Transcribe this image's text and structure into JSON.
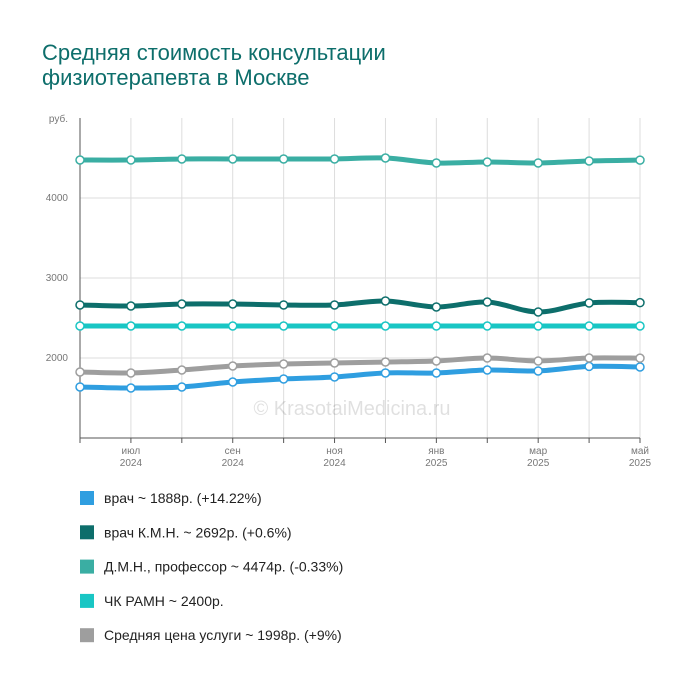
{
  "chart_data": {
    "type": "line",
    "title": "Средняя стоимость консультации физиотерапевта в Москве",
    "y_label": "руб.",
    "watermark": "© KrasotaiMedicina.ru",
    "categories": [
      null,
      "июл",
      null,
      "сен",
      null,
      "ноя",
      null,
      "янв",
      null,
      "мар",
      null,
      "май"
    ],
    "category_years": [
      null,
      "2024",
      null,
      "2024",
      null,
      "2024",
      null,
      "2025",
      null,
      "2025",
      null,
      "2025"
    ],
    "ylim": [
      1000,
      5000
    ],
    "yticks": [
      2000,
      3000,
      4000
    ],
    "grid": true,
    "series": [
      {
        "name": "врач ~ 1888р. (+14.22%)",
        "color": "#2f9ee0",
        "values": [
          1638,
          1625,
          1638,
          1700,
          1738,
          1763,
          1813,
          1813,
          1850,
          1838,
          1895,
          1888
        ]
      },
      {
        "name": "врач К.М.Н. ~ 2692р. (+0.6%)",
        "color": "#0d6e6b",
        "values": [
          2663,
          2650,
          2675,
          2675,
          2663,
          2663,
          2713,
          2638,
          2700,
          2575,
          2688,
          2692
        ]
      },
      {
        "name": "Д.М.Н., профессор ~ 4474р. (-0.33%)",
        "color": "#3aaea3",
        "values": [
          4475,
          4475,
          4488,
          4488,
          4488,
          4488,
          4500,
          4438,
          4450,
          4438,
          4463,
          4474
        ]
      },
      {
        "name": "ЧК РАМН ~ 2400р.",
        "color": "#19c6c4",
        "values": [
          2400,
          2400,
          2400,
          2400,
          2400,
          2400,
          2400,
          2400,
          2400,
          2400,
          2400,
          2400
        ]
      },
      {
        "name": "Средняя цена услуги ~ 1998р. (+9%)",
        "color": "#9e9e9e",
        "values": [
          1825,
          1813,
          1850,
          1900,
          1925,
          1938,
          1950,
          1963,
          2000,
          1963,
          2000,
          1998
        ]
      }
    ]
  }
}
